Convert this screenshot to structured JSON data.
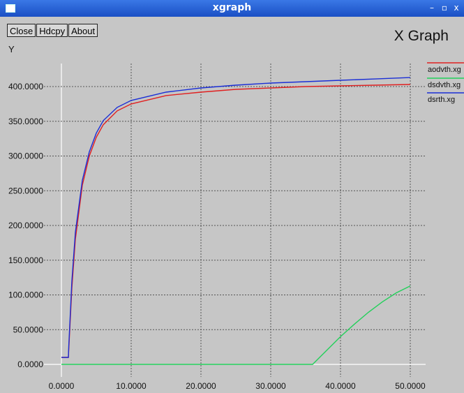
{
  "window": {
    "title": "xgraph"
  },
  "buttons": {
    "close": "Close",
    "hdcpy": "Hdcpy",
    "about": "About"
  },
  "graph": {
    "title": "X Graph",
    "ylabel": "Y"
  },
  "icons": {
    "menu": "window-menu-icon",
    "minimize": "minimize-icon",
    "maximize": "maximize-icon",
    "close": "close-icon"
  },
  "chart_data": {
    "type": "line",
    "title": "X Graph",
    "xlabel": "",
    "ylabel": "Y",
    "xlim": [
      -2.5,
      52.5
    ],
    "ylim": [
      -2,
      430
    ],
    "x_ticks": [
      "0.0000",
      "10.0000",
      "20.0000",
      "30.0000",
      "40.0000",
      "50.0000"
    ],
    "y_ticks": [
      "0.0000",
      "50.0000",
      "100.0000",
      "150.0000",
      "200.0000",
      "250.0000",
      "300.0000",
      "350.0000",
      "400.0000"
    ],
    "grid": true,
    "legend_position": "right",
    "series": [
      {
        "name": "aodvth.xg",
        "color": "#e02020",
        "x": [
          0,
          1,
          1.05,
          1.5,
          2,
          3,
          4,
          5,
          6,
          8,
          10,
          15,
          20,
          25,
          30,
          35,
          40,
          45,
          50
        ],
        "y": [
          10,
          10,
          20,
          110,
          180,
          258,
          300,
          327,
          345,
          365,
          375,
          387,
          392,
          396,
          398,
          400,
          401,
          402,
          403
        ]
      },
      {
        "name": "dsdvth.xg",
        "color": "#22d05a",
        "x": [
          0,
          10,
          20,
          30,
          36,
          38,
          40,
          42,
          44,
          46,
          48,
          50
        ],
        "y": [
          0,
          0,
          0,
          0,
          0,
          20,
          40,
          58,
          75,
          90,
          103,
          113
        ]
      },
      {
        "name": "dsrth.xg",
        "color": "#1a2ed6",
        "x": [
          0,
          1,
          1.05,
          1.5,
          2,
          3,
          4,
          5,
          6,
          8,
          10,
          15,
          20,
          25,
          30,
          35,
          40,
          45,
          50
        ],
        "y": [
          10,
          10,
          25,
          120,
          190,
          265,
          306,
          333,
          351,
          370,
          380,
          392,
          398,
          402,
          405,
          407,
          409,
          411,
          413
        ]
      }
    ]
  }
}
